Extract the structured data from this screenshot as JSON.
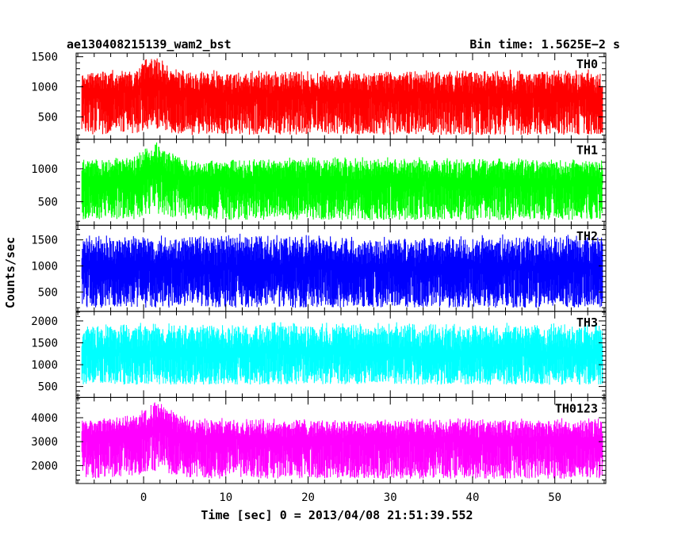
{
  "header": {
    "title": "ae130408215139_wam2_bst",
    "bin_time": "Bin time: 1.5625E−2 s"
  },
  "chart_data": {
    "type": "line",
    "xlabel": "Time [sec] 0 = 2013/04/08 21:51:39.552",
    "ylabel": "Counts/sec",
    "xlim": [
      -8.2,
      56.2
    ],
    "x_ticks": [
      0,
      10,
      20,
      30,
      40,
      50
    ],
    "data_x_range": [
      -7.5,
      55.8
    ],
    "panels": [
      {
        "name": "TH0",
        "color": "#ff0000",
        "ylim": [
          130,
          1560
        ],
        "y_ticks": [
          500,
          1000,
          1500
        ],
        "profile": [
          [
            -7.5,
            210,
            920,
            1280
          ],
          [
            -1,
            210,
            920,
            1300
          ],
          [
            0,
            280,
            1050,
            1480
          ],
          [
            1.5,
            300,
            1080,
            1560
          ],
          [
            3,
            230,
            960,
            1350
          ],
          [
            6,
            200,
            880,
            1280
          ],
          [
            20,
            210,
            870,
            1280
          ],
          [
            35,
            200,
            870,
            1290
          ],
          [
            55.8,
            200,
            870,
            1300
          ]
        ]
      },
      {
        "name": "TH1",
        "color": "#00ff00",
        "ylim": [
          140,
          1450
        ],
        "y_ticks": [
          500,
          1000
        ],
        "profile": [
          [
            -7.5,
            230,
            840,
            1150
          ],
          [
            -1,
            230,
            860,
            1200
          ],
          [
            0,
            290,
            970,
            1360
          ],
          [
            2,
            300,
            1000,
            1450
          ],
          [
            3.5,
            250,
            900,
            1250
          ],
          [
            6,
            220,
            830,
            1150
          ],
          [
            20,
            220,
            820,
            1180
          ],
          [
            40,
            220,
            820,
            1180
          ],
          [
            55.8,
            220,
            820,
            1150
          ]
        ]
      },
      {
        "name": "TH2",
        "color": "#0000ff",
        "ylim": [
          130,
          1780
        ],
        "y_ticks": [
          500,
          1000,
          1500
        ],
        "profile": [
          [
            -7.5,
            200,
            1000,
            1600
          ],
          [
            10,
            200,
            1000,
            1620
          ],
          [
            30,
            200,
            990,
            1600
          ],
          [
            55.8,
            200,
            990,
            1620
          ]
        ]
      },
      {
        "name": "TH3",
        "color": "#00ffff",
        "ylim": [
          250,
          2220
        ],
        "y_ticks": [
          500,
          1000,
          1500,
          2000
        ],
        "profile": [
          [
            -7.5,
            540,
            1300,
            1950
          ],
          [
            20,
            550,
            1300,
            2000
          ],
          [
            40,
            540,
            1300,
            1980
          ],
          [
            55.8,
            540,
            1300,
            1950
          ]
        ]
      },
      {
        "name": "TH0123",
        "color": "#ff00ff",
        "ylim": [
          1250,
          4850
        ],
        "y_ticks": [
          2000,
          3000,
          4000
        ],
        "profile": [
          [
            -7.5,
            1450,
            3200,
            4000
          ],
          [
            -1,
            1500,
            3300,
            4150
          ],
          [
            0,
            1700,
            3500,
            4500
          ],
          [
            2,
            1800,
            3600,
            4800
          ],
          [
            3.5,
            1600,
            3350,
            4300
          ],
          [
            6,
            1450,
            3150,
            4000
          ],
          [
            30,
            1450,
            3100,
            4000
          ],
          [
            55.8,
            1450,
            3100,
            4000
          ]
        ]
      }
    ]
  }
}
